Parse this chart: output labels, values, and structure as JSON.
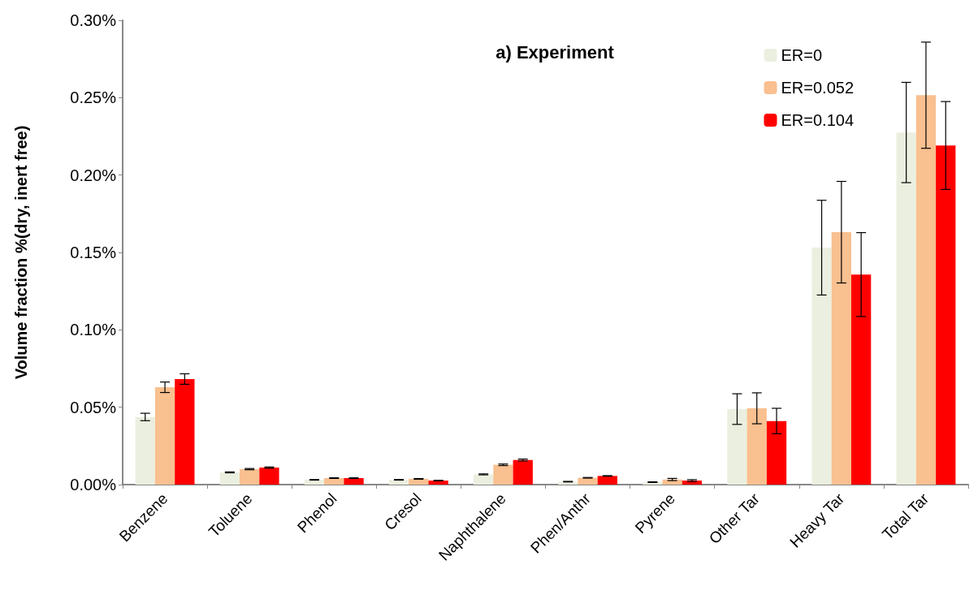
{
  "chart_data": {
    "type": "bar",
    "title": "a) Experiment",
    "ylabel": "Volume fraction %(dry, inert free)",
    "categories": [
      "Benzene",
      "Toluene",
      "Phenol",
      "Cresol",
      "Naphthalene",
      "Phen/Anthr",
      "Pyrene",
      "Other Tar",
      "Heavy Tar",
      "Total Tar"
    ],
    "series": [
      {
        "name": "ER=0",
        "color": "#ebefdf",
        "values": [
          0.0437,
          0.0079,
          0.0031,
          0.0031,
          0.0066,
          0.0019,
          0.0016,
          0.0488,
          0.1531,
          0.2275
        ],
        "errors": [
          0.0024,
          0.0003,
          0.0002,
          0.0002,
          0.0003,
          0.0002,
          0.0002,
          0.0099,
          0.0306,
          0.0324
        ]
      },
      {
        "name": "ER=0.052",
        "color": "#f9c090",
        "values": [
          0.0629,
          0.01,
          0.0042,
          0.0037,
          0.0128,
          0.0044,
          0.0033,
          0.0493,
          0.1631,
          0.2516
        ],
        "errors": [
          0.0034,
          0.0004,
          0.0002,
          0.0002,
          0.0005,
          0.0002,
          0.0007,
          0.01,
          0.0328,
          0.0343
        ]
      },
      {
        "name": "ER=0.104",
        "color": "#ff0000",
        "values": [
          0.0682,
          0.011,
          0.0042,
          0.0026,
          0.0159,
          0.0056,
          0.0026,
          0.0411,
          0.1357,
          0.2191
        ],
        "errors": [
          0.0034,
          0.0004,
          0.0002,
          0.0002,
          0.0006,
          0.0002,
          0.0006,
          0.0082,
          0.0271,
          0.0284
        ]
      }
    ],
    "ylim": [
      0,
      0.3
    ],
    "yticks": [
      {
        "value": 0,
        "label": "0.00%"
      },
      {
        "value": 0.05,
        "label": "0.05%"
      },
      {
        "value": 0.1,
        "label": "0.10%"
      },
      {
        "value": 0.15,
        "label": "0.15%"
      },
      {
        "value": 0.2,
        "label": "0.20%"
      },
      {
        "value": 0.25,
        "label": "0.25%"
      },
      {
        "value": 0.3,
        "label": "0.30%"
      }
    ],
    "grid": false,
    "legend": "top right"
  }
}
